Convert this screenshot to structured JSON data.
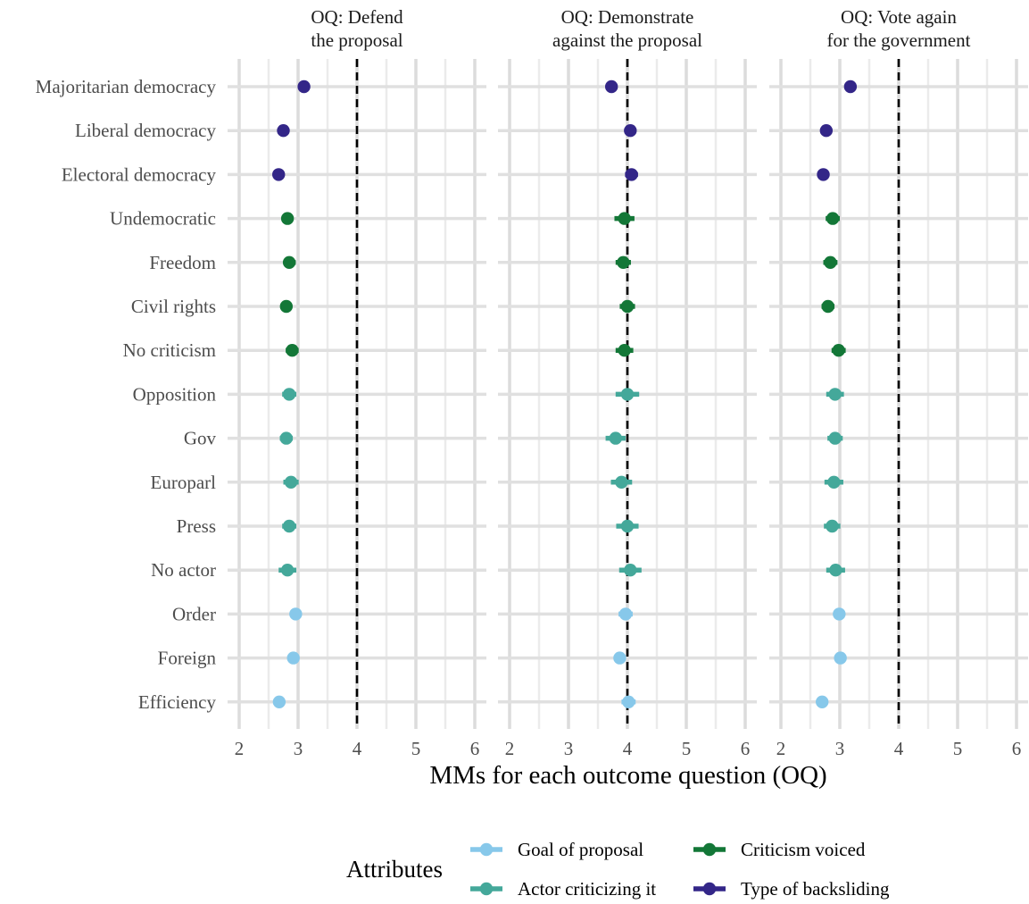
{
  "chart_data": {
    "type": "scatter",
    "subtype": "dot-with-errorbars, faceted",
    "x_title": "MMs for each outcome question (OQ)",
    "xlim": [
      2,
      6
    ],
    "x_ticks": [
      2,
      3,
      4,
      5,
      6
    ],
    "reference_line_x": 4,
    "grid": true,
    "categories": [
      "Majoritarian democracy",
      "Liberal democracy",
      "Electoral democracy",
      "Undemocratic",
      "Freedom",
      "Civil rights",
      "No criticism",
      "Opposition",
      "Gov",
      "Europarl",
      "Press",
      "No actor",
      "Order",
      "Foreign",
      "Efficiency"
    ],
    "category_group": [
      "Type of backsliding",
      "Type of backsliding",
      "Type of backsliding",
      "Criticism voiced",
      "Criticism voiced",
      "Criticism voiced",
      "Criticism voiced",
      "Actor criticizing it",
      "Actor criticizing it",
      "Actor criticizing it",
      "Actor criticizing it",
      "Actor criticizing it",
      "Goal of proposal",
      "Goal of proposal",
      "Goal of proposal"
    ],
    "facets": [
      {
        "title": "OQ: Defend the proposal",
        "title_lines": [
          "OQ: Defend",
          "the proposal"
        ],
        "estimates": [
          3.1,
          2.75,
          2.67,
          2.82,
          2.85,
          2.8,
          2.9,
          2.85,
          2.8,
          2.88,
          2.85,
          2.82,
          2.96,
          2.92,
          2.68
        ],
        "ci_low": [
          3.0,
          2.66,
          2.57,
          2.72,
          2.75,
          2.7,
          2.79,
          2.73,
          2.69,
          2.75,
          2.73,
          2.67,
          2.86,
          2.83,
          2.58
        ],
        "ci_high": [
          3.19,
          2.84,
          2.77,
          2.92,
          2.96,
          2.9,
          3.01,
          2.97,
          2.91,
          3.01,
          2.97,
          2.97,
          3.06,
          3.01,
          2.78
        ]
      },
      {
        "title": "OQ: Demonstrate against the proposal",
        "title_lines": [
          "OQ: Demonstrate",
          "against the proposal"
        ],
        "estimates": [
          3.73,
          4.05,
          4.07,
          3.95,
          3.93,
          4.0,
          3.95,
          4.0,
          3.8,
          3.9,
          4.0,
          4.05,
          3.97,
          3.87,
          4.02
        ],
        "ci_low": [
          3.63,
          3.95,
          3.96,
          3.78,
          3.8,
          3.87,
          3.8,
          3.8,
          3.63,
          3.72,
          3.81,
          3.86,
          3.85,
          3.77,
          3.9
        ],
        "ci_high": [
          3.83,
          4.15,
          4.18,
          4.12,
          4.06,
          4.13,
          4.1,
          4.2,
          3.97,
          4.08,
          4.19,
          4.24,
          4.09,
          3.97,
          4.14
        ]
      },
      {
        "title": "OQ: Vote again for the government",
        "title_lines": [
          "OQ: Vote again",
          "for the government"
        ],
        "estimates": [
          3.18,
          2.77,
          2.72,
          2.88,
          2.84,
          2.8,
          2.98,
          2.92,
          2.92,
          2.9,
          2.87,
          2.93,
          2.99,
          3.01,
          2.7
        ],
        "ci_low": [
          3.08,
          2.68,
          2.62,
          2.76,
          2.72,
          2.69,
          2.86,
          2.77,
          2.79,
          2.74,
          2.73,
          2.77,
          2.89,
          2.91,
          2.6
        ],
        "ci_high": [
          3.28,
          2.86,
          2.82,
          3.0,
          2.96,
          2.91,
          3.1,
          3.07,
          3.05,
          3.06,
          3.01,
          3.09,
          3.09,
          3.11,
          2.8
        ]
      }
    ],
    "legend": {
      "title": "Attributes",
      "position": "bottom",
      "items": [
        {
          "label": "Goal of proposal",
          "color": "#87c8ea"
        },
        {
          "label": "Actor criticizing it",
          "color": "#44a89a"
        },
        {
          "label": "Criticism voiced",
          "color": "#137737"
        },
        {
          "label": "Type of backsliding",
          "color": "#332688"
        }
      ]
    }
  }
}
